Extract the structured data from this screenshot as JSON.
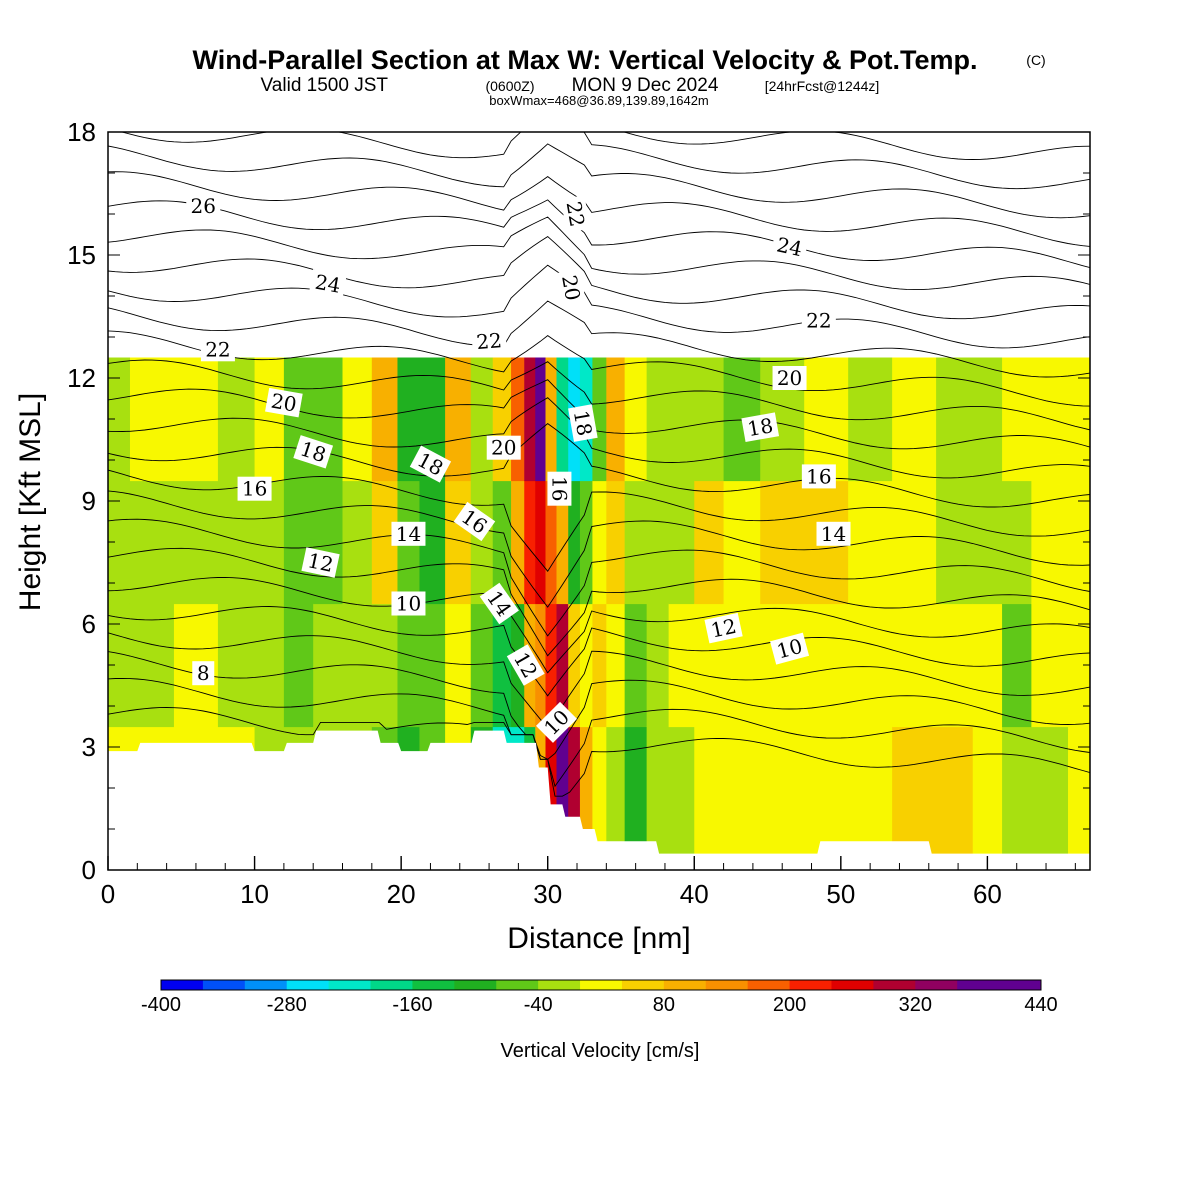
{
  "title": {
    "main": "Wind-Parallel Section at Max W: Vertical Velocity & Pot.Temp.",
    "copyright": "(C)",
    "valid_prefix": "Valid 1500 JST",
    "utc_time": "(0600Z)",
    "valid_date": "MON 9 Dec 2024",
    "forecast": "[24hrFcst@1244z]",
    "boxmax": "boxWmax=468@36.89,139.89,1642m"
  },
  "colorbar": {
    "label": "Vertical Velocity [cm/s]",
    "tick_labels": [
      "-400",
      "-280",
      "-160",
      "-40",
      "80",
      "200",
      "320",
      "440"
    ],
    "levels": [
      -400,
      -360,
      -320,
      -280,
      -240,
      -200,
      -160,
      -120,
      -80,
      -40,
      0,
      40,
      80,
      120,
      160,
      200,
      240,
      280,
      320,
      360,
      400,
      440
    ],
    "colors": [
      "#0000f0",
      "#0050f8",
      "#0090f8",
      "#00e0f8",
      "#00e8c8",
      "#00d888",
      "#10c040",
      "#20b020",
      "#60c818",
      "#a8e010",
      "#f8f800",
      "#f8d000",
      "#f8b000",
      "#f89000",
      "#f86000",
      "#f82000",
      "#e00000",
      "#b00030",
      "#900060",
      "#600090",
      "#600090"
    ]
  },
  "chart_data": {
    "type": "heatmap",
    "title": "Wind-Parallel Section at Max W: Vertical Velocity & Pot.Temp.",
    "xlabel": "Distance [nm]",
    "ylabel": "Height [Kft MSL]",
    "xlim": [
      0,
      67
    ],
    "ylim": [
      0,
      18
    ],
    "x_ticks": [
      0,
      10,
      20,
      30,
      40,
      50,
      60
    ],
    "y_ticks": [
      0,
      3,
      6,
      9,
      12,
      15,
      18
    ],
    "field": "Vertical Velocity [cm/s]",
    "max_value": 468,
    "max_location": "36.89,139.89",
    "max_height_m": 1642,
    "columns_distance_nm": [
      0,
      3,
      6,
      9,
      11,
      13,
      15,
      17,
      19,
      20.5,
      22,
      24,
      25.5,
      27,
      28,
      28.8,
      29.5,
      30.2,
      31,
      31.8,
      32.6,
      33.5,
      34.5,
      36,
      37.5,
      39,
      41,
      43,
      46,
      49,
      52,
      55,
      58,
      60,
      62,
      64,
      67
    ],
    "rows_height_kft": [
      3.5,
      6.5,
      9.5,
      12.5,
      15.5,
      18
    ],
    "values_cms": [
      [
        0,
        -40,
        -40,
        -40
      ],
      [
        0,
        -40,
        -40,
        0
      ],
      [
        0,
        0,
        -40,
        0
      ],
      [
        0,
        -40,
        -40,
        -40
      ],
      [
        -40,
        -40,
        -40,
        0
      ],
      [
        -40,
        -80,
        -80,
        -80
      ],
      [
        -40,
        -40,
        -80,
        -80
      ],
      [
        -40,
        -40,
        -40,
        0
      ],
      [
        -80,
        -40,
        40,
        80
      ],
      [
        -120,
        -80,
        -80,
        -120
      ],
      [
        -80,
        -80,
        -120,
        -120
      ],
      [
        0,
        0,
        40,
        80
      ],
      [
        -120,
        -80,
        -40,
        -40
      ],
      [
        -240,
        -160,
        -80,
        40
      ],
      [
        -240,
        -120,
        80,
        160
      ],
      [
        -160,
        80,
        200,
        280
      ],
      [
        80,
        120,
        240,
        360
      ],
      [
        240,
        200,
        160,
        80
      ],
      [
        440,
        280,
        80,
        -200
      ],
      [
        280,
        40,
        -120,
        -280
      ],
      [
        80,
        0,
        -80,
        -240
      ],
      [
        0,
        40,
        0,
        -80
      ],
      [
        -40,
        0,
        40,
        80
      ],
      [
        -120,
        -80,
        -40,
        0
      ],
      [
        -40,
        -40,
        -40,
        -40
      ],
      [
        -40,
        0,
        -40,
        -40
      ],
      [
        0,
        0,
        40,
        -40
      ],
      [
        0,
        0,
        0,
        -80
      ],
      [
        0,
        0,
        40,
        -40
      ],
      [
        0,
        0,
        40,
        0
      ],
      [
        0,
        0,
        0,
        -40
      ],
      [
        40,
        0,
        0,
        0
      ],
      [
        40,
        0,
        -40,
        -40
      ],
      [
        0,
        0,
        -40,
        -40
      ],
      [
        -40,
        -80,
        -40,
        0
      ],
      [
        -40,
        0,
        0,
        0
      ],
      [
        0,
        0,
        0,
        0
      ]
    ],
    "terrain_kft": [
      [
        0,
        2.9
      ],
      [
        2,
        2.9
      ],
      [
        2.2,
        3.1
      ],
      [
        9.8,
        3.1
      ],
      [
        10,
        2.9
      ],
      [
        12,
        2.9
      ],
      [
        12.2,
        3.1
      ],
      [
        14,
        3.1
      ],
      [
        14.2,
        3.4
      ],
      [
        18.4,
        3.4
      ],
      [
        18.6,
        3.1
      ],
      [
        19.8,
        3.1
      ],
      [
        20,
        2.9
      ],
      [
        21.8,
        2.9
      ],
      [
        22,
        3.1
      ],
      [
        24.8,
        3.1
      ],
      [
        25,
        3.4
      ],
      [
        27,
        3.4
      ],
      [
        27.2,
        3.1
      ],
      [
        29.2,
        3.1
      ],
      [
        29.4,
        2.5
      ],
      [
        30,
        2.5
      ],
      [
        30.2,
        1.6
      ],
      [
        31,
        1.6
      ],
      [
        31.2,
        1.3
      ],
      [
        32.2,
        1.3
      ],
      [
        32.4,
        1.0
      ],
      [
        33.2,
        1.0
      ],
      [
        33.4,
        0.7
      ],
      [
        37.4,
        0.7
      ],
      [
        37.6,
        0.4
      ],
      [
        48.4,
        0.4
      ],
      [
        48.6,
        0.7
      ],
      [
        56,
        0.7
      ],
      [
        56.2,
        0.4
      ],
      [
        67,
        0.4
      ]
    ],
    "isentrope_labels": [
      {
        "text": "26",
        "x": 6.5,
        "y": 16.2,
        "rot": 0
      },
      {
        "text": "24",
        "x": 15,
        "y": 14.3,
        "rot": 10
      },
      {
        "text": "22",
        "x": 7.5,
        "y": 12.7,
        "rot": 0
      },
      {
        "text": "20",
        "x": 12,
        "y": 11.4,
        "rot": 10
      },
      {
        "text": "18",
        "x": 14,
        "y": 10.2,
        "rot": 18
      },
      {
        "text": "16",
        "x": 10,
        "y": 9.3,
        "rot": 0
      },
      {
        "text": "12",
        "x": 14.5,
        "y": 7.5,
        "rot": 12
      },
      {
        "text": "8",
        "x": 6.5,
        "y": 4.8,
        "rot": 0
      },
      {
        "text": "18",
        "x": 22,
        "y": 9.9,
        "rot": 28
      },
      {
        "text": "14",
        "x": 20.5,
        "y": 8.2,
        "rot": 0
      },
      {
        "text": "10",
        "x": 20.5,
        "y": 6.5,
        "rot": 0
      },
      {
        "text": "22",
        "x": 26,
        "y": 12.9,
        "rot": -5
      },
      {
        "text": "20",
        "x": 27,
        "y": 10.3,
        "rot": 0
      },
      {
        "text": "16",
        "x": 25,
        "y": 8.5,
        "rot": 35
      },
      {
        "text": "14",
        "x": 26.7,
        "y": 6.5,
        "rot": 55
      },
      {
        "text": "12",
        "x": 28.5,
        "y": 5.0,
        "rot": 60
      },
      {
        "text": "10",
        "x": 30.6,
        "y": 3.6,
        "rot": -45
      },
      {
        "text": "22",
        "x": 31.9,
        "y": 16.0,
        "rot": 80
      },
      {
        "text": "20",
        "x": 31.6,
        "y": 14.2,
        "rot": 80
      },
      {
        "text": "18",
        "x": 32.4,
        "y": 10.9,
        "rot": 80
      },
      {
        "text": "16",
        "x": 30.8,
        "y": 9.3,
        "rot": 90
      },
      {
        "text": "24",
        "x": 46.5,
        "y": 15.2,
        "rot": 12
      },
      {
        "text": "22",
        "x": 48.5,
        "y": 13.4,
        "rot": 0
      },
      {
        "text": "20",
        "x": 46.5,
        "y": 12.0,
        "rot": 0
      },
      {
        "text": "18",
        "x": 44.5,
        "y": 10.8,
        "rot": -10
      },
      {
        "text": "16",
        "x": 48.5,
        "y": 9.6,
        "rot": 0
      },
      {
        "text": "14",
        "x": 49.5,
        "y": 8.2,
        "rot": 0
      },
      {
        "text": "12",
        "x": 42,
        "y": 5.9,
        "rot": -12
      },
      {
        "text": "10",
        "x": 46.5,
        "y": 5.4,
        "rot": -15
      }
    ]
  }
}
